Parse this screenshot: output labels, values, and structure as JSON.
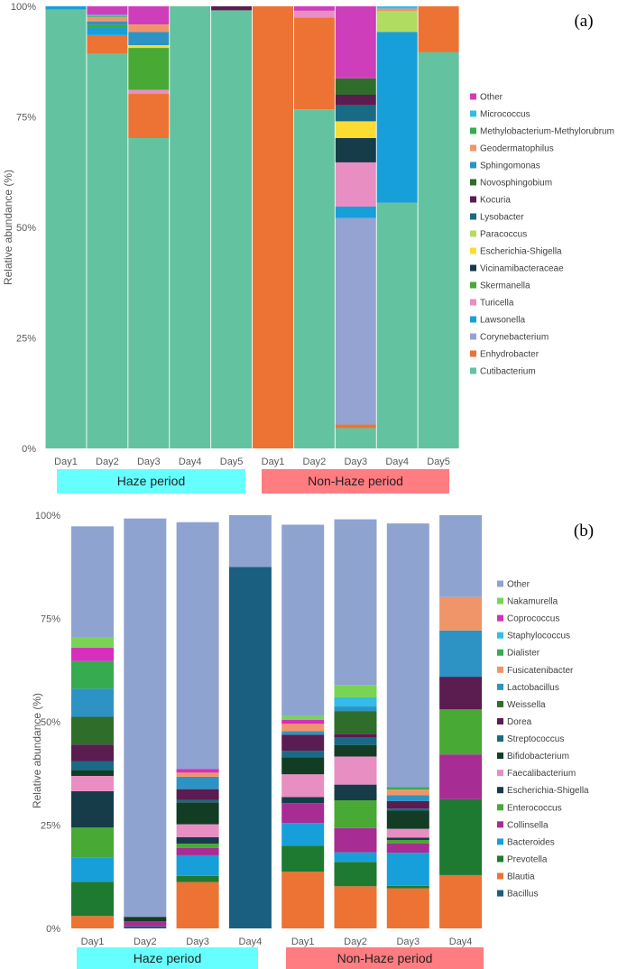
{
  "chart_data": [
    {
      "type": "bar",
      "stacked": true,
      "panel_label": "(a)",
      "ylabel": "Relative abundance (%)",
      "yticks": [
        "0%",
        "25%",
        "50%",
        "75%",
        "100%"
      ],
      "ylim": [
        0,
        100
      ],
      "categories": [
        "Day1",
        "Day2",
        "Day3",
        "Day4",
        "Day5",
        "Day1",
        "Day2",
        "Day3",
        "Day4",
        "Day5"
      ],
      "groups": [
        {
          "label": "Haze period",
          "color": "#66ffff",
          "count": 5
        },
        {
          "label": "Non-Haze period",
          "color": "#ff7c80",
          "count": 5
        }
      ],
      "series": [
        {
          "name": "Cutibacterium",
          "color": "#63c3a0",
          "values": [
            99.3,
            89.3,
            70.2,
            100,
            99.1,
            0,
            76.7,
            4.6,
            55.6,
            89.6
          ]
        },
        {
          "name": "Enhydrobacter",
          "color": "#ec7334",
          "values": [
            0,
            4.2,
            10.0,
            0,
            0,
            100,
            20.8,
            0.8,
            0,
            10.4
          ]
        },
        {
          "name": "Corynebacterium",
          "color": "#94a3d2",
          "values": [
            0,
            0,
            0,
            0,
            0,
            0,
            0,
            46.7,
            0,
            0
          ]
        },
        {
          "name": "Lawsonella",
          "color": "#179fd9",
          "values": [
            0.7,
            1.8,
            0,
            0,
            0,
            0,
            0,
            2.6,
            38.6,
            0
          ]
        },
        {
          "name": "Turicella",
          "color": "#e88ec3",
          "values": [
            0,
            0,
            0.9,
            0,
            0,
            0,
            1.5,
            10.0,
            0,
            0
          ]
        },
        {
          "name": "Skermanella",
          "color": "#48a935",
          "values": [
            0,
            0.5,
            9.5,
            0,
            0,
            0,
            0,
            0,
            0,
            0
          ]
        },
        {
          "name": "Vicinamibacteraceae",
          "color": "#163c4a",
          "values": [
            0,
            0,
            0,
            0,
            0,
            0,
            0,
            5.5,
            0,
            0
          ]
        },
        {
          "name": "Escherichia-Shigella",
          "color": "#fcdc33",
          "values": [
            0,
            0,
            0.6,
            0,
            0,
            0,
            0,
            3.8,
            0,
            0
          ]
        },
        {
          "name": "Paracoccus",
          "color": "#b1dc62",
          "values": [
            0,
            0,
            0,
            0,
            0,
            0,
            0,
            0,
            4.7,
            0
          ]
        },
        {
          "name": "Lysobacter",
          "color": "#196a85",
          "values": [
            0,
            0,
            0,
            0,
            0,
            0,
            0,
            3.6,
            0,
            0
          ]
        },
        {
          "name": "Kocuria",
          "color": "#5b1c4f",
          "values": [
            0,
            0,
            0,
            0,
            0.9,
            0,
            0,
            2.4,
            0,
            0
          ]
        },
        {
          "name": "Novosphingobium",
          "color": "#2f6e2a",
          "values": [
            0,
            0,
            0,
            0,
            0,
            0,
            0,
            3.7,
            0,
            0
          ]
        },
        {
          "name": "Sphingomonas",
          "color": "#2d93c4",
          "values": [
            0,
            0.8,
            3.0,
            0,
            0,
            0,
            0,
            0,
            0,
            0
          ]
        },
        {
          "name": "Geodermatophilus",
          "color": "#f0956a",
          "values": [
            0,
            1.0,
            1.7,
            0,
            0,
            0,
            0,
            0,
            0.6,
            0
          ]
        },
        {
          "name": "Methylobacterium-Methylorubrum",
          "color": "#36ab4f",
          "values": [
            0,
            0.2,
            0,
            0,
            0,
            0,
            0,
            0,
            0,
            0
          ]
        },
        {
          "name": "Micrococcus",
          "color": "#33bce8",
          "values": [
            0,
            0.3,
            0,
            0,
            0,
            0,
            0,
            0,
            0.5,
            0
          ]
        },
        {
          "name": "Other",
          "color": "#cf3eba",
          "values": [
            0,
            1.9,
            4.1,
            0,
            0,
            0,
            1.0,
            16.3,
            0,
            0
          ]
        }
      ]
    },
    {
      "type": "bar",
      "stacked": true,
      "panel_label": "(b)",
      "ylabel": "Relative abundance (%)",
      "yticks": [
        "0%",
        "25%",
        "50%",
        "75%",
        "100%"
      ],
      "ylim": [
        0,
        100
      ],
      "categories": [
        "Day1",
        "Day2",
        "Day3",
        "Day4",
        "Day1",
        "Day2",
        "Day3",
        "Day4"
      ],
      "groups": [
        {
          "label": "Haze period",
          "color": "#66ffff",
          "count": 4
        },
        {
          "label": "Non-Haze period",
          "color": "#ff7c80",
          "count": 4
        }
      ],
      "series": [
        {
          "name": "Bacillus",
          "color": "#1a5f80",
          "values": [
            0,
            0.5,
            0,
            87.5,
            0,
            0,
            0,
            0
          ]
        },
        {
          "name": "Blautia",
          "color": "#ec7334",
          "values": [
            3.0,
            0,
            11.2,
            0,
            13.7,
            10.2,
            9.7,
            12.9
          ]
        },
        {
          "name": "Prevotella",
          "color": "#1e7a31",
          "values": [
            8.3,
            0,
            1.5,
            0,
            6.3,
            5.9,
            0.6,
            18.4
          ]
        },
        {
          "name": "Bacteroides",
          "color": "#179fd9",
          "values": [
            5.8,
            0,
            5.0,
            0,
            5.5,
            2.3,
            8.0,
            0
          ]
        },
        {
          "name": "Collinsella",
          "color": "#a72c94",
          "values": [
            0,
            1.2,
            1.8,
            0,
            4.8,
            5.9,
            2.3,
            10.8
          ]
        },
        {
          "name": "Enterococcus",
          "color": "#48a935",
          "values": [
            7.3,
            0,
            1.0,
            0,
            0,
            6.7,
            0.8,
            10.9
          ]
        },
        {
          "name": "Escherichia-Shigella",
          "color": "#163c4a",
          "values": [
            8.8,
            0,
            1.6,
            0,
            1.5,
            3.8,
            0.6,
            0
          ]
        },
        {
          "name": "Faecalibacterium",
          "color": "#e88ec3",
          "values": [
            3.7,
            0,
            3.1,
            0,
            5.5,
            6.8,
            2.1,
            0
          ]
        },
        {
          "name": "Bifidobacterium",
          "color": "#123c24",
          "values": [
            1.4,
            1.1,
            5.3,
            0,
            4.1,
            2.8,
            4.4,
            0
          ]
        },
        {
          "name": "Streptococcus",
          "color": "#196a85",
          "values": [
            2.2,
            0,
            0.6,
            0,
            1.6,
            1.8,
            0.5,
            0
          ]
        },
        {
          "name": "Dorea",
          "color": "#5b1c4f",
          "values": [
            4.0,
            0,
            2.6,
            0,
            3.9,
            0.9,
            1.8,
            7.9
          ]
        },
        {
          "name": "Weissella",
          "color": "#2f6e2a",
          "values": [
            6.7,
            0,
            0,
            0,
            0,
            5.5,
            0,
            0
          ]
        },
        {
          "name": "Lactobacillus",
          "color": "#2d93c4",
          "values": [
            6.8,
            0,
            3.0,
            0,
            0.8,
            1.1,
            1.4,
            11.2
          ]
        },
        {
          "name": "Fusicatenibacter",
          "color": "#f0956a",
          "values": [
            0,
            0,
            1.0,
            0,
            1.8,
            0,
            1.4,
            8.1
          ]
        },
        {
          "name": "Dialister",
          "color": "#36ab4f",
          "values": [
            6.7,
            0,
            0,
            0,
            0,
            0,
            0.6,
            0
          ]
        },
        {
          "name": "Staphylococcus",
          "color": "#33bce8",
          "values": [
            0,
            0,
            0,
            0,
            0,
            2.2,
            0,
            0
          ]
        },
        {
          "name": "Coprococcus",
          "color": "#d62fbb",
          "values": [
            3.2,
            0,
            0.9,
            0,
            1.0,
            0,
            0,
            0
          ]
        },
        {
          "name": "Nakamurella",
          "color": "#79d456",
          "values": [
            2.5,
            0,
            0,
            0,
            0.9,
            3.0,
            0,
            0
          ]
        },
        {
          "name": "Other",
          "color": "#8fa3d1",
          "values": [
            26.9,
            96.4,
            59.7,
            12.5,
            46.3,
            40.1,
            63.8,
            19.8
          ]
        }
      ]
    }
  ]
}
